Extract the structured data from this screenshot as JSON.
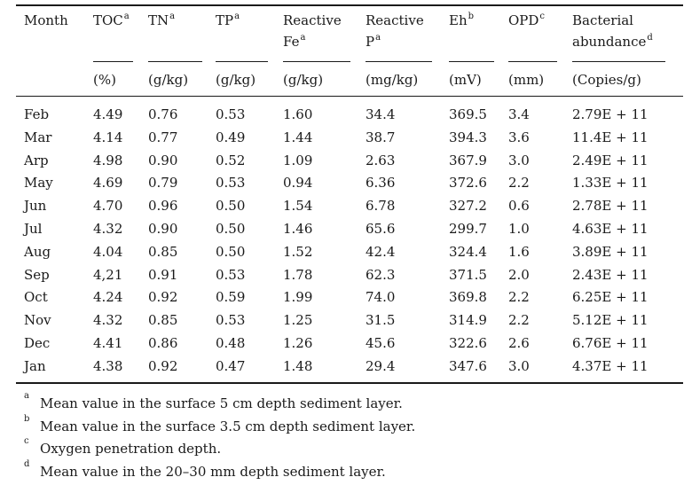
{
  "header": {
    "columns": [
      {
        "lines": [
          "Month"
        ]
      },
      {
        "lines": [
          "TOC"
        ],
        "sup": "a"
      },
      {
        "lines": [
          "TN"
        ],
        "sup": "a"
      },
      {
        "lines": [
          "TP"
        ],
        "sup": "a"
      },
      {
        "lines": [
          "Reactive",
          "Fe"
        ],
        "sup": "a"
      },
      {
        "lines": [
          "Reactive",
          "P"
        ],
        "sup": "a"
      },
      {
        "lines": [
          "Eh"
        ],
        "sup": "b"
      },
      {
        "lines": [
          "OPD"
        ],
        "sup": "c"
      },
      {
        "lines": [
          "Bacterial",
          "abundance"
        ],
        "sup": "d"
      }
    ]
  },
  "units": [
    "(%)",
    "(g/kg)",
    "(g/kg)",
    "(g/kg)",
    "(mg/kg)",
    "(mV)",
    "(mm)",
    "(Copies/g)"
  ],
  "rows": [
    [
      "Feb",
      "4.49",
      "0.76",
      "0.53",
      "1.60",
      "34.4",
      "369.5",
      "3.4",
      "2.79E + 11"
    ],
    [
      "Mar",
      "4.14",
      "0.77",
      "0.49",
      "1.44",
      "38.7",
      "394.3",
      "3.6",
      "11.4E + 11"
    ],
    [
      "Arp",
      "4.98",
      "0.90",
      "0.52",
      "1.09",
      "2.63",
      "367.9",
      "3.0",
      "2.49E + 11"
    ],
    [
      "May",
      "4.69",
      "0.79",
      "0.53",
      "0.94",
      "6.36",
      "372.6",
      "2.2",
      "1.33E + 11"
    ],
    [
      "Jun",
      "4.70",
      "0.96",
      "0.50",
      "1.54",
      "6.78",
      "327.2",
      "0.6",
      "2.78E + 11"
    ],
    [
      "Jul",
      "4.32",
      "0.90",
      "0.50",
      "1.46",
      "65.6",
      "299.7",
      "1.0",
      "4.63E + 11"
    ],
    [
      "Aug",
      "4.04",
      "0.85",
      "0.50",
      "1.52",
      "42.4",
      "324.4",
      "1.6",
      "3.89E + 11"
    ],
    [
      "Sep",
      "4,21",
      "0.91",
      "0.53",
      "1.78",
      "62.3",
      "371.5",
      "2.0",
      "2.43E + 11"
    ],
    [
      "Oct",
      "4.24",
      "0.92",
      "0.59",
      "1.99",
      "74.0",
      "369.8",
      "2.2",
      "6.25E + 11"
    ],
    [
      "Nov",
      "4.32",
      "0.85",
      "0.53",
      "1.25",
      "31.5",
      "314.9",
      "2.2",
      "5.12E + 11"
    ],
    [
      "Dec",
      "4.41",
      "0.86",
      "0.48",
      "1.26",
      "45.6",
      "322.6",
      "2.6",
      "6.76E + 11"
    ],
    [
      "Jan",
      "4.38",
      "0.92",
      "0.47",
      "1.48",
      "29.4",
      "347.6",
      "3.0",
      "4.37E + 11"
    ]
  ],
  "footnotes": [
    {
      "mark": "a",
      "text": "Mean value in the surface 5 cm depth sediment layer."
    },
    {
      "mark": "b",
      "text": "Mean value in the surface 3.5 cm depth sediment layer."
    },
    {
      "mark": "c",
      "text": "Oxygen penetration depth."
    },
    {
      "mark": "d",
      "text": "Mean value in the 20–30 mm depth sediment layer."
    }
  ]
}
